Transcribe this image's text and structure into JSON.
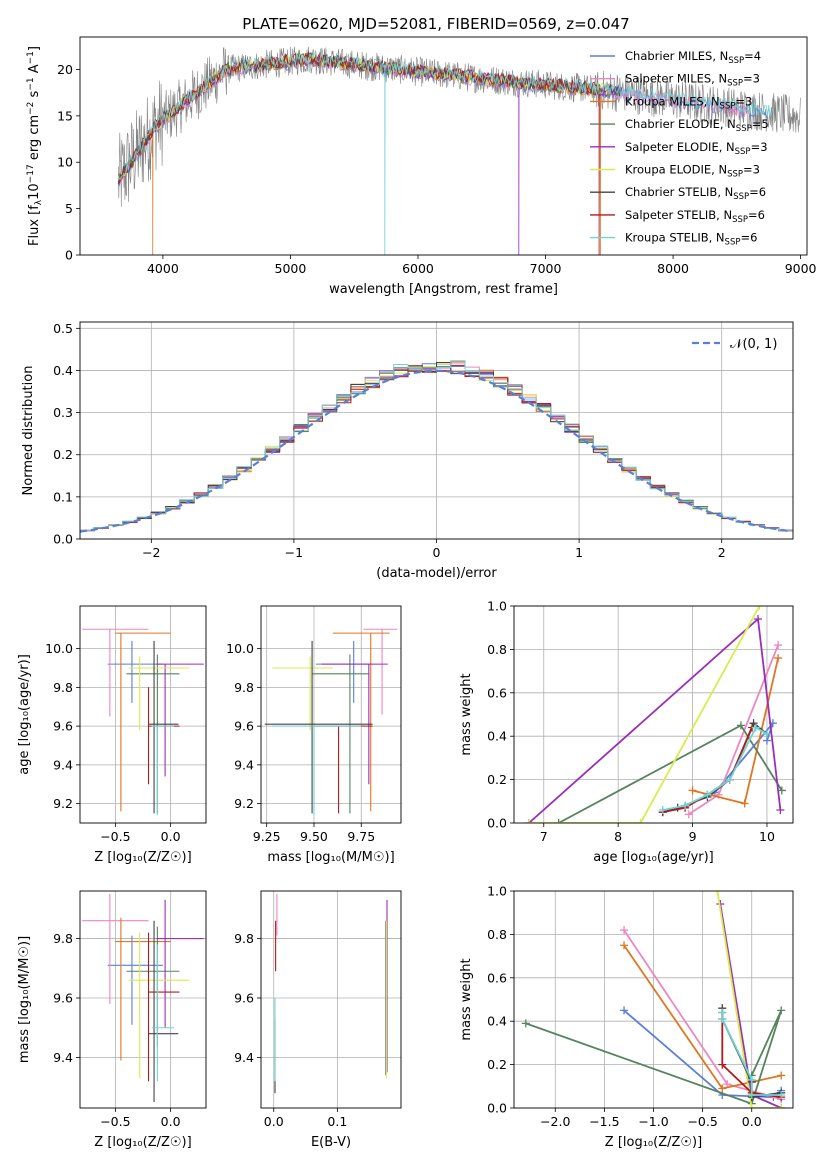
{
  "title": "PLATE=0620, MJD=52081, FIBERID=0569, z=0.047",
  "colors": [
    "#5a7fd8",
    "#ef86c0",
    "#e07622",
    "#56845e",
    "#9b2fb8",
    "#d9ec4d",
    "#444444",
    "#b21a1a",
    "#6fd3d8"
  ],
  "series": [
    {
      "label": "Chabrier MILES, N",
      "sub": "SSP",
      "suffix": "=4",
      "color": "#5a7fd8"
    },
    {
      "label": "Salpeter MILES, N",
      "sub": "SSP",
      "suffix": "=3",
      "color": "#ef86c0"
    },
    {
      "label": "Kroupa MILES, N",
      "sub": "SSP",
      "suffix": "=3",
      "color": "#e07622"
    },
    {
      "label": "Chabrier ELODIE, N",
      "sub": "SSP",
      "suffix": "=5",
      "color": "#56845e"
    },
    {
      "label": "Salpeter ELODIE, N",
      "sub": "SSP",
      "suffix": "=3",
      "color": "#9b2fb8"
    },
    {
      "label": "Kroupa ELODIE, N",
      "sub": "SSP",
      "suffix": "=3",
      "color": "#d9ec4d"
    },
    {
      "label": "Chabrier STELIB, N",
      "sub": "SSP",
      "suffix": "=6",
      "color": "#444444"
    },
    {
      "label": "Salpeter STELIB, N",
      "sub": "SSP",
      "suffix": "=6",
      "color": "#b21a1a"
    },
    {
      "label": "Kroupa STELIB, N",
      "sub": "SSP",
      "suffix": "=6",
      "color": "#6fd3d8"
    }
  ],
  "chart_data": [
    {
      "id": "spectrum",
      "type": "line",
      "xlabel": "wavelength [Angstrom, rest frame]",
      "ylabel": "Flux [f",
      "ylabel_parts": [
        "Flux [f",
        "λ",
        "10",
        "−17",
        " erg cm",
        "−2",
        " s",
        "−1",
        " A",
        "−1",
        "]"
      ],
      "xlim": [
        3350,
        9050
      ],
      "ylim": [
        0,
        23.5
      ],
      "xticks": [
        4000,
        5000,
        6000,
        7000,
        8000,
        9000
      ],
      "yticks": [
        0,
        5,
        10,
        15,
        20
      ],
      "legend": "upper right"
    },
    {
      "id": "residuals",
      "type": "line",
      "xlabel": "(data-model)/error",
      "ylabel": "Normed distribution",
      "xlim": [
        -2.5,
        2.5
      ],
      "ylim": [
        0,
        0.515
      ],
      "xticks": [
        -2,
        -1,
        0,
        1,
        2
      ],
      "yticks": [
        0.0,
        0.1,
        0.2,
        0.3,
        0.4,
        0.5
      ],
      "legend_label": "𝒩(0, 1)",
      "legend": "upper right",
      "grid": true
    },
    {
      "id": "age_vs_Z",
      "type": "scatter",
      "xlabel": "Z [log₁₀(Z/Z☉)]",
      "ylabel": "age  [log₁₀(age/yr)]",
      "xlim": [
        -0.82,
        0.32
      ],
      "ylim": [
        9.1,
        10.22
      ],
      "xticks": [
        -0.5,
        0.0
      ],
      "yticks": [
        9.2,
        9.4,
        9.6,
        9.8,
        10.0
      ],
      "grid": true,
      "points": [
        {
          "x": -0.35,
          "y": 9.92,
          "xerr": [
            0.22,
            0.28
          ],
          "yerr": [
            0.2,
            0.12
          ],
          "c": 0
        },
        {
          "x": -0.55,
          "y": 10.1,
          "xerr": [
            0.25,
            0.35
          ],
          "yerr": [
            0.45,
            0.0
          ],
          "c": 1
        },
        {
          "x": -0.45,
          "y": 10.08,
          "xerr": [
            0.05,
            0.45
          ],
          "yerr": [
            0.92,
            0.0
          ],
          "c": 2
        },
        {
          "x": -0.12,
          "y": 9.87,
          "xerr": [
            0.28,
            0.2
          ],
          "yerr": [
            0.72,
            0.1
          ],
          "c": 3
        },
        {
          "x": -0.05,
          "y": 9.92,
          "xerr": [
            0.08,
            0.35
          ],
          "yerr": [
            0.58,
            0.0
          ],
          "c": 4
        },
        {
          "x": -0.28,
          "y": 9.9,
          "xerr": [
            0.1,
            0.45
          ],
          "yerr": [
            0.32,
            0.06
          ],
          "c": 5
        },
        {
          "x": -0.15,
          "y": 9.61,
          "xerr": [
            0.05,
            0.22
          ],
          "yerr": [
            0.46,
            0.43
          ],
          "c": 6
        },
        {
          "x": -0.2,
          "y": 9.6,
          "xerr": [
            0.0,
            0.28
          ],
          "yerr": [
            0.3,
            0.2
          ],
          "c": 7
        },
        {
          "x": -0.12,
          "y": 9.6,
          "xerr": [
            0.05,
            0.15
          ],
          "yerr": [
            0.46,
            0.0
          ],
          "c": 8
        }
      ]
    },
    {
      "id": "age_vs_mass",
      "type": "scatter",
      "xlabel": "mass [log₁₀(M/M☉)]",
      "ylabel": "",
      "xlim": [
        9.22,
        9.96
      ],
      "ylim": [
        9.1,
        10.22
      ],
      "xticks": [
        9.25,
        9.5,
        9.75
      ],
      "yticks": [
        9.2,
        9.4,
        9.6,
        9.8,
        10.0
      ],
      "grid": true,
      "points": [
        {
          "x": 9.71,
          "y": 9.92,
          "xerr": [
            0.2,
            0.1
          ],
          "yerr": [
            0.2,
            0.12
          ],
          "c": 0
        },
        {
          "x": 9.86,
          "y": 10.1,
          "xerr": [
            0.1,
            0.08
          ],
          "yerr": [
            0.44,
            0.0
          ],
          "c": 1
        },
        {
          "x": 9.8,
          "y": 10.08,
          "xerr": [
            0.2,
            0.1
          ],
          "yerr": [
            0.92,
            0.0
          ],
          "c": 2
        },
        {
          "x": 9.69,
          "y": 9.87,
          "xerr": [
            0.2,
            0.1
          ],
          "yerr": [
            0.72,
            0.1
          ],
          "c": 3
        },
        {
          "x": 9.79,
          "y": 9.92,
          "xerr": [
            0.25,
            0.1
          ],
          "yerr": [
            0.62,
            0.0
          ],
          "c": 4
        },
        {
          "x": 9.48,
          "y": 9.9,
          "xerr": [
            0.2,
            0.12
          ],
          "yerr": [
            0.32,
            0.06
          ],
          "c": 5
        },
        {
          "x": 9.49,
          "y": 9.61,
          "xerr": [
            0.25,
            0.32
          ],
          "yerr": [
            0.46,
            0.43
          ],
          "c": 6
        },
        {
          "x": 9.63,
          "y": 9.6,
          "xerr": [
            0.15,
            0.18
          ],
          "yerr": [
            0.45,
            0.0
          ],
          "c": 7
        },
        {
          "x": 9.5,
          "y": 9.6,
          "xerr": [
            0.22,
            0.25
          ],
          "yerr": [
            0.46,
            0.0
          ],
          "c": 8
        }
      ]
    },
    {
      "id": "weight_vs_age",
      "type": "line",
      "xlabel": "age  [log₁₀(age/yr)]",
      "ylabel": "mass weight",
      "xlim": [
        6.6,
        10.35
      ],
      "ylim": [
        0,
        1
      ],
      "xticks": [
        7,
        8,
        9,
        10
      ],
      "yticks": [
        0.0,
        0.2,
        0.4,
        0.6,
        0.8,
        1.0
      ],
      "grid": true,
      "lines": [
        {
          "c": 0,
          "x": [
            8.6,
            8.9,
            9.3,
            10.08,
            10.0
          ],
          "y": [
            0.05,
            0.08,
            0.14,
            0.46,
            0.38
          ]
        },
        {
          "c": 1,
          "x": [
            8.95,
            9.35,
            10.15
          ],
          "y": [
            0.04,
            0.13,
            0.82
          ]
        },
        {
          "c": 2,
          "x": [
            9.0,
            9.7,
            10.15
          ],
          "y": [
            0.15,
            0.09,
            0.76
          ]
        },
        {
          "c": 3,
          "x": [
            7.2,
            9.65,
            10.2
          ],
          "y": [
            0.0,
            0.45,
            0.15
          ]
        },
        {
          "c": 4,
          "x": [
            6.8,
            9.88,
            10.18
          ],
          "y": [
            0.0,
            0.94,
            0.06
          ]
        },
        {
          "c": 5,
          "x": [
            6.8,
            8.3,
            9.9
          ],
          "y": [
            0.0,
            0.0,
            1.0
          ]
        },
        {
          "c": 6,
          "x": [
            8.6,
            8.8,
            9.2,
            9.5,
            9.82,
            10.0
          ],
          "y": [
            0.05,
            0.07,
            0.12,
            0.2,
            0.46,
            0.41
          ]
        },
        {
          "c": 7,
          "x": [
            8.6,
            8.9,
            9.2,
            9.5,
            9.8
          ],
          "y": [
            0.05,
            0.07,
            0.13,
            0.2,
            0.44
          ]
        },
        {
          "c": 8,
          "x": [
            8.6,
            8.9,
            9.2,
            9.5,
            9.85,
            10.0
          ],
          "y": [
            0.06,
            0.08,
            0.13,
            0.2,
            0.44,
            0.41
          ]
        }
      ]
    },
    {
      "id": "mass_vs_Z",
      "type": "scatter",
      "xlabel": "Z [log₁₀(Z/Z☉)]",
      "ylabel": "mass [log₁₀(M/M☉)]",
      "xlim": [
        -0.82,
        0.32
      ],
      "ylim": [
        9.23,
        9.96
      ],
      "xticks": [
        -0.5,
        0.0
      ],
      "yticks": [
        9.4,
        9.6,
        9.8
      ],
      "grid": true,
      "points": [
        {
          "x": -0.35,
          "y": 9.71,
          "xerr": [
            0.22,
            0.28
          ],
          "yerr": [
            0.2,
            0.1
          ],
          "c": 0
        },
        {
          "x": -0.55,
          "y": 9.86,
          "xerr": [
            0.25,
            0.35
          ],
          "yerr": [
            0.28,
            0.09
          ],
          "c": 1
        },
        {
          "x": -0.45,
          "y": 9.79,
          "xerr": [
            0.05,
            0.45
          ],
          "yerr": [
            0.4,
            0.08
          ],
          "c": 2
        },
        {
          "x": -0.12,
          "y": 9.69,
          "xerr": [
            0.28,
            0.2
          ],
          "yerr": [
            0.25,
            0.15
          ],
          "c": 3
        },
        {
          "x": -0.05,
          "y": 9.8,
          "xerr": [
            0.08,
            0.35
          ],
          "yerr": [
            0.3,
            0.13
          ],
          "c": 4
        },
        {
          "x": -0.28,
          "y": 9.66,
          "xerr": [
            0.1,
            0.45
          ],
          "yerr": [
            0.33,
            0.16
          ],
          "c": 5
        },
        {
          "x": -0.15,
          "y": 9.48,
          "xerr": [
            0.05,
            0.22
          ],
          "yerr": [
            0.23,
            0.38
          ],
          "c": 6
        },
        {
          "x": -0.2,
          "y": 9.62,
          "xerr": [
            0.0,
            0.28
          ],
          "yerr": [
            0.3,
            0.2
          ],
          "c": 7
        },
        {
          "x": -0.12,
          "y": 9.5,
          "xerr": [
            0.05,
            0.15
          ],
          "yerr": [
            0.18,
            0.28
          ],
          "c": 8
        }
      ]
    },
    {
      "id": "mass_vs_EBV",
      "type": "scatter",
      "xlabel": "E(B-V)",
      "ylabel": "",
      "xlim": [
        -0.02,
        0.2
      ],
      "ylim": [
        9.23,
        9.96
      ],
      "xticks": [
        0.0,
        0.1
      ],
      "yticks": [
        9.4,
        9.6,
        9.8
      ],
      "grid": true,
      "points": [
        {
          "x": 0.005,
          "y": 9.86,
          "xerr": [
            0,
            0
          ],
          "yerr": [
            0.05,
            0.09
          ],
          "c": 1
        },
        {
          "x": 0.003,
          "y": 9.79,
          "xerr": [
            0,
            0
          ],
          "yerr": [
            0.1,
            0.07
          ],
          "c": 7
        },
        {
          "x": 0.002,
          "y": 9.48,
          "xerr": [
            0,
            0
          ],
          "yerr": [
            0.2,
            0.05
          ],
          "c": 6
        },
        {
          "x": 0.002,
          "y": 9.5,
          "xerr": [
            0,
            0
          ],
          "yerr": [
            0.18,
            0.1
          ],
          "c": 8
        },
        {
          "x": 0.178,
          "y": 9.8,
          "xerr": [
            0,
            0
          ],
          "yerr": [
            0.45,
            0.13
          ],
          "c": 4
        },
        {
          "x": 0.176,
          "y": 9.69,
          "xerr": [
            0,
            0
          ],
          "yerr": [
            0.35,
            0.17
          ],
          "c": 3
        },
        {
          "x": 0.177,
          "y": 9.66,
          "xerr": [
            0,
            0
          ],
          "yerr": [
            0.33,
            0.2
          ],
          "c": 5
        }
      ]
    },
    {
      "id": "weight_vs_Z",
      "type": "line",
      "xlabel": "Z [log₁₀(Z/Z☉)]",
      "ylabel": "mass weight",
      "xlim": [
        -2.42,
        0.42
      ],
      "ylim": [
        0,
        1
      ],
      "xticks": [
        -2.0,
        -1.5,
        -1.0,
        -0.5,
        0.0
      ],
      "yticks": [
        0.0,
        0.2,
        0.4,
        0.6,
        0.8,
        1.0
      ],
      "grid": true,
      "lines": [
        {
          "c": 0,
          "x": [
            -1.3,
            -0.3,
            0.22,
            0.3
          ],
          "y": [
            0.45,
            0.06,
            0.05,
            0.08
          ]
        },
        {
          "c": 1,
          "x": [
            -1.3,
            -0.25,
            0.3
          ],
          "y": [
            0.82,
            0.11,
            0.04
          ]
        },
        {
          "c": 2,
          "x": [
            -1.3,
            -0.3,
            0.3
          ],
          "y": [
            0.75,
            0.09,
            0.15
          ]
        },
        {
          "c": 3,
          "x": [
            -2.3,
            0.0,
            0.3,
            0.0,
            0.0
          ],
          "y": [
            0.39,
            0.02,
            0.45,
            0.15,
            0.12
          ]
        },
        {
          "c": 4,
          "x": [
            -0.32,
            0.0,
            0.3
          ],
          "y": [
            0.94,
            0.06,
            0.0
          ]
        },
        {
          "c": 5,
          "x": [
            -0.35,
            0.0,
            0.3
          ],
          "y": [
            1.0,
            0.0,
            0.0
          ]
        },
        {
          "c": 6,
          "x": [
            -0.3,
            -0.3,
            0.0,
            0.0,
            0.3
          ],
          "y": [
            0.46,
            0.41,
            0.12,
            0.05,
            0.07
          ]
        },
        {
          "c": 7,
          "x": [
            -0.3,
            -0.3,
            0.0,
            0.3
          ],
          "y": [
            0.44,
            0.2,
            0.07,
            0.05
          ]
        },
        {
          "c": 8,
          "x": [
            -0.3,
            -0.3,
            0.0,
            0.0,
            0.3
          ],
          "y": [
            0.44,
            0.41,
            0.13,
            0.06,
            0.06
          ]
        }
      ]
    }
  ]
}
